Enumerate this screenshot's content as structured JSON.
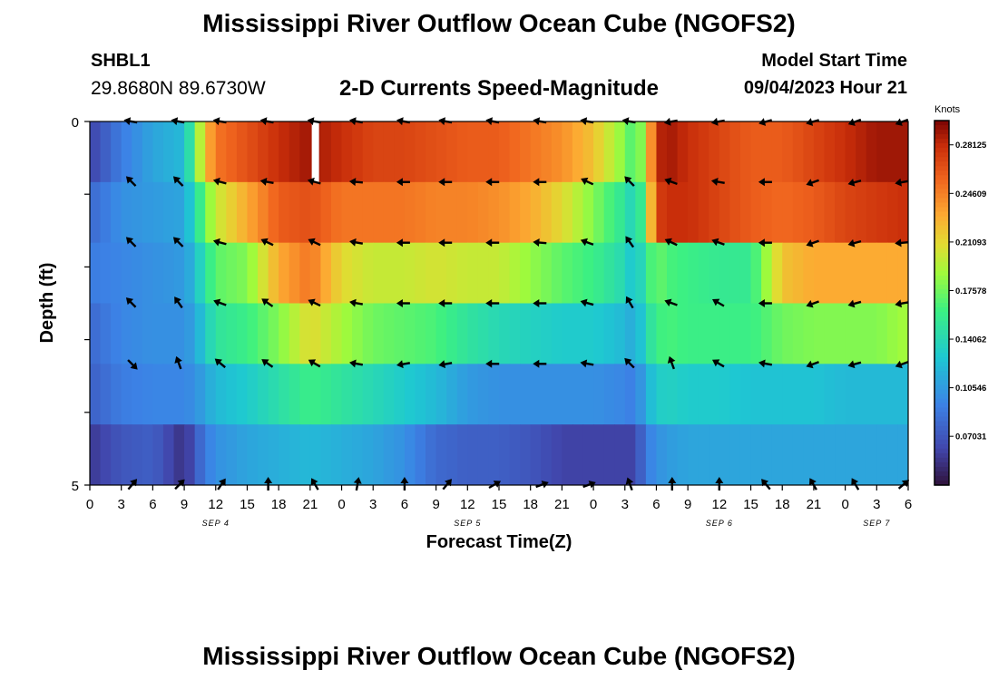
{
  "header": {
    "title": "Mississippi River Outflow Ocean Cube (NGOFS2)",
    "station_id": "SHBL1",
    "coordinates": "29.8680N  89.6730W",
    "variable": "2-D Currents Speed-Magnitude",
    "model_start_label": "Model Start Time",
    "model_start_value": "09/04/2023 Hour 21"
  },
  "footer": {
    "title": "Mississippi River Outflow Ocean Cube (NGOFS2)"
  },
  "chart_data": {
    "type": "heatmap",
    "xlabel": "Forecast Time(Z)",
    "ylabel": "Depth (ft)",
    "ylim": [
      0,
      5
    ],
    "y_tick_labels": [
      "0",
      "5"
    ],
    "x_tick_labels": [
      "0",
      "3",
      "6",
      "9",
      "12",
      "15",
      "18",
      "21",
      "0",
      "3",
      "6",
      "9",
      "12",
      "15",
      "18",
      "21",
      "0",
      "3",
      "6",
      "9",
      "12",
      "15",
      "18",
      "21",
      "0",
      "3",
      "6"
    ],
    "day_labels": [
      {
        "label": "SEP 4",
        "hour": 12
      },
      {
        "label": "SEP 5",
        "hour": 36
      },
      {
        "label": "SEP 6",
        "hour": 60
      },
      {
        "label": "SEP 7",
        "hour": 75
      }
    ],
    "x_hours_total": 78,
    "colorbar": {
      "unit": "Knots",
      "ticks": [
        "0.28125",
        "0.24609",
        "0.21093",
        "0.17578",
        "0.14062",
        "0.10546",
        "0.07031"
      ],
      "tick_values": [
        0.28125,
        0.24609,
        0.21093,
        0.17578,
        0.14062,
        0.10546,
        0.07031
      ],
      "min": 0.035,
      "max": 0.2988
    },
    "layer_anchor_hours": [
      0,
      3,
      6,
      9,
      10,
      11,
      12,
      15,
      18,
      21,
      24,
      27,
      30,
      33,
      36,
      39,
      42,
      45,
      48,
      51,
      52,
      53,
      54,
      55,
      57,
      60,
      63,
      66,
      69,
      72,
      75,
      78
    ],
    "layers": [
      {
        "name": "layer-1",
        "values": [
          0.06,
          0.09,
          0.11,
          0.12,
          0.17,
          0.22,
          0.25,
          0.265,
          0.28,
          0.29,
          0.28,
          0.27,
          0.27,
          0.265,
          0.26,
          0.26,
          0.25,
          0.24,
          0.22,
          0.18,
          0.16,
          0.2,
          0.28,
          0.29,
          0.28,
          0.27,
          0.26,
          0.26,
          0.27,
          0.28,
          0.29,
          0.29
        ]
      },
      {
        "name": "layer-2",
        "values": [
          0.08,
          0.1,
          0.105,
          0.11,
          0.14,
          0.175,
          0.2,
          0.23,
          0.26,
          0.265,
          0.25,
          0.25,
          0.25,
          0.245,
          0.245,
          0.24,
          0.23,
          0.21,
          0.18,
          0.15,
          0.13,
          0.18,
          0.27,
          0.28,
          0.28,
          0.27,
          0.26,
          0.255,
          0.26,
          0.27,
          0.275,
          0.28
        ]
      },
      {
        "name": "layer-3",
        "values": [
          0.09,
          0.095,
          0.1,
          0.105,
          0.12,
          0.15,
          0.17,
          0.18,
          0.23,
          0.25,
          0.21,
          0.2,
          0.2,
          0.205,
          0.2,
          0.2,
          0.185,
          0.17,
          0.16,
          0.14,
          0.12,
          0.155,
          0.175,
          0.165,
          0.16,
          0.155,
          0.155,
          0.22,
          0.23,
          0.23,
          0.23,
          0.23
        ]
      },
      {
        "name": "layer-4",
        "values": [
          0.08,
          0.095,
          0.1,
          0.1,
          0.11,
          0.13,
          0.15,
          0.16,
          0.18,
          0.21,
          0.19,
          0.175,
          0.17,
          0.165,
          0.15,
          0.14,
          0.135,
          0.13,
          0.13,
          0.12,
          0.11,
          0.14,
          0.16,
          0.165,
          0.16,
          0.16,
          0.16,
          0.175,
          0.18,
          0.18,
          0.18,
          0.19
        ]
      },
      {
        "name": "layer-5",
        "values": [
          0.075,
          0.09,
          0.095,
          0.095,
          0.1,
          0.11,
          0.12,
          0.13,
          0.145,
          0.16,
          0.15,
          0.14,
          0.13,
          0.12,
          0.105,
          0.1,
          0.1,
          0.1,
          0.1,
          0.095,
          0.09,
          0.115,
          0.13,
          0.135,
          0.13,
          0.13,
          0.125,
          0.125,
          0.125,
          0.12,
          0.12,
          0.12
        ]
      },
      {
        "name": "layer-6",
        "values": [
          0.055,
          0.07,
          0.075,
          0.05,
          0.07,
          0.09,
          0.1,
          0.11,
          0.115,
          0.12,
          0.115,
          0.11,
          0.1,
          0.08,
          0.075,
          0.075,
          0.07,
          0.06,
          0.06,
          0.06,
          0.06,
          0.09,
          0.1,
          0.105,
          0.11,
          0.11,
          0.11,
          0.11,
          0.11,
          0.11,
          0.11,
          0.11
        ]
      }
    ],
    "arrow_hours": [
      4,
      8.5,
      12.5,
      17,
      21.5,
      25.5,
      30,
      34,
      38.5,
      43,
      47.5,
      51.5,
      55.5,
      60,
      64.5,
      69,
      73,
      77.5
    ],
    "arrow_rows": [
      {
        "name": "row-1",
        "angles": [
          170,
          170,
          170,
          170,
          170,
          170,
          170,
          170,
          170,
          170,
          170,
          170,
          190,
          190,
          195,
          195,
          200,
          200
        ]
      },
      {
        "name": "row-2",
        "angles": [
          135,
          135,
          165,
          170,
          165,
          175,
          180,
          180,
          180,
          180,
          155,
          135,
          160,
          170,
          180,
          200,
          195,
          190
        ]
      },
      {
        "name": "row-3",
        "angles": [
          135,
          135,
          165,
          155,
          155,
          170,
          180,
          180,
          180,
          175,
          160,
          125,
          155,
          160,
          180,
          200,
          195,
          185
        ]
      },
      {
        "name": "row-4",
        "angles": [
          135,
          125,
          160,
          145,
          155,
          170,
          180,
          180,
          180,
          180,
          165,
          120,
          160,
          150,
          180,
          200,
          195,
          190
        ]
      },
      {
        "name": "row-5",
        "angles": [
          -45,
          110,
          140,
          145,
          150,
          170,
          190,
          190,
          180,
          180,
          170,
          135,
          110,
          150,
          170,
          200,
          195,
          200
        ]
      },
      {
        "name": "row-6",
        "angles": [
          50,
          45,
          55,
          90,
          120,
          80,
          90,
          50,
          30,
          20,
          20,
          110,
          90,
          90,
          130,
          120,
          120,
          40
        ]
      }
    ],
    "blank_marker_hour": 21.5
  }
}
